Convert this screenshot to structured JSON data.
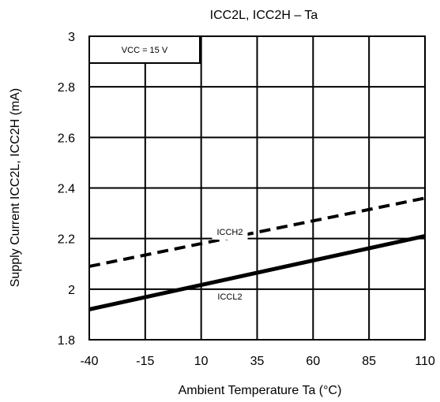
{
  "chart_data": {
    "type": "line",
    "title": "ICC2L, ICC2H – Ta",
    "xlabel": "Ambient Temperature    Ta    (°C)",
    "ylabel": "Supply Current    ICC2L, ICC2H    (mA)",
    "x_ticks": [
      "-40",
      "-15",
      "10",
      "35",
      "60",
      "85",
      "110"
    ],
    "y_ticks": [
      "1.8",
      "2",
      "2.2",
      "2.4",
      "2.6",
      "2.8",
      "3"
    ],
    "xlim": [
      -40,
      110
    ],
    "ylim": [
      1.8,
      3.0
    ],
    "grid": true,
    "condition_label": "VCC = 15 V",
    "series": [
      {
        "name": "ICCH2",
        "style": "dashed",
        "x": [
          -40,
          110
        ],
        "y": [
          2.09,
          2.36
        ]
      },
      {
        "name": "ICCL2",
        "style": "solid",
        "x": [
          -40,
          110
        ],
        "y": [
          1.92,
          2.21
        ]
      }
    ]
  }
}
